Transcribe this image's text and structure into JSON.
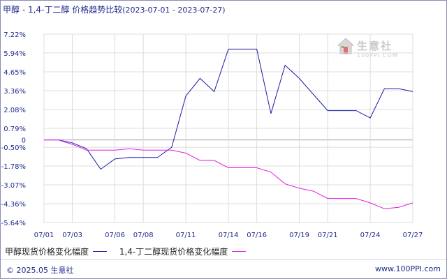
{
  "title": {
    "main": "甲醇 - 1,4-丁二醇 价格趋势比较",
    "range": "(2023-07-01 - 2023-07-27)"
  },
  "watermark": {
    "text": "生意社",
    "sub": "100PPI.COM"
  },
  "legend": [
    {
      "label": "甲醇现货价格变化幅度",
      "color": "#1a1aa6"
    },
    {
      "label": "1,4-丁二醇现货价格变化幅度",
      "color": "#e01ee0"
    }
  ],
  "footer": {
    "left": "© 2025.05 生意社",
    "right": "www.100PPI.com"
  },
  "chart_data": {
    "type": "line",
    "x_ticks": [
      "07/01",
      "07/03",
      "07/06",
      "07/08",
      "07/11",
      "07/14",
      "07/16",
      "07/19",
      "07/21",
      "07/24",
      "07/27"
    ],
    "y_ticks": [
      "7.22%",
      "5.94%",
      "4.65%",
      "3.36%",
      "2.08%",
      "0.79%",
      "0",
      "-0.50%",
      "-1.78%",
      "-3.07%",
      "-4.36%",
      "-5.64%"
    ],
    "y_tick_values": [
      7.22,
      5.94,
      4.65,
      3.36,
      2.08,
      0.79,
      0,
      -0.5,
      -1.78,
      -3.07,
      -4.36,
      -5.64
    ],
    "ylim": [
      -5.64,
      7.22
    ],
    "x_range": [
      "2023-07-01",
      "2023-07-27"
    ],
    "grid": true,
    "series": [
      {
        "name": "甲醇现货价格变化幅度",
        "color": "#1a1aa6",
        "points": [
          [
            "2023-07-01",
            0.0
          ],
          [
            "2023-07-02",
            0.0
          ],
          [
            "2023-07-03",
            -0.2
          ],
          [
            "2023-07-04",
            -0.6
          ],
          [
            "2023-07-05",
            -2.0
          ],
          [
            "2023-07-06",
            -1.3
          ],
          [
            "2023-07-07",
            -1.2
          ],
          [
            "2023-07-08",
            -1.2
          ],
          [
            "2023-07-09",
            -1.2
          ],
          [
            "2023-07-10",
            -0.5
          ],
          [
            "2023-07-11",
            3.0
          ],
          [
            "2023-07-12",
            4.2
          ],
          [
            "2023-07-13",
            3.3
          ],
          [
            "2023-07-14",
            6.2
          ],
          [
            "2023-07-15",
            6.2
          ],
          [
            "2023-07-16",
            6.2
          ],
          [
            "2023-07-17",
            1.8
          ],
          [
            "2023-07-18",
            5.1
          ],
          [
            "2023-07-19",
            4.2
          ],
          [
            "2023-07-20",
            3.1
          ],
          [
            "2023-07-21",
            2.0
          ],
          [
            "2023-07-22",
            2.0
          ],
          [
            "2023-07-23",
            2.0
          ],
          [
            "2023-07-24",
            1.5
          ],
          [
            "2023-07-25",
            3.5
          ],
          [
            "2023-07-26",
            3.5
          ],
          [
            "2023-07-27",
            3.3
          ]
        ]
      },
      {
        "name": "1,4-丁二醇现货价格变化幅度",
        "color": "#e01ee0",
        "points": [
          [
            "2023-07-01",
            0.0
          ],
          [
            "2023-07-02",
            0.0
          ],
          [
            "2023-07-03",
            -0.3
          ],
          [
            "2023-07-04",
            -0.7
          ],
          [
            "2023-07-05",
            -0.7
          ],
          [
            "2023-07-06",
            -0.7
          ],
          [
            "2023-07-07",
            -0.6
          ],
          [
            "2023-07-08",
            -0.7
          ],
          [
            "2023-07-09",
            -0.7
          ],
          [
            "2023-07-10",
            -0.7
          ],
          [
            "2023-07-11",
            -0.9
          ],
          [
            "2023-07-12",
            -1.4
          ],
          [
            "2023-07-13",
            -1.4
          ],
          [
            "2023-07-14",
            -1.9
          ],
          [
            "2023-07-15",
            -1.9
          ],
          [
            "2023-07-16",
            -1.9
          ],
          [
            "2023-07-17",
            -2.2
          ],
          [
            "2023-07-18",
            -3.0
          ],
          [
            "2023-07-19",
            -3.3
          ],
          [
            "2023-07-20",
            -3.5
          ],
          [
            "2023-07-21",
            -4.0
          ],
          [
            "2023-07-22",
            -4.0
          ],
          [
            "2023-07-23",
            -4.0
          ],
          [
            "2023-07-24",
            -4.3
          ],
          [
            "2023-07-25",
            -4.7
          ],
          [
            "2023-07-26",
            -4.6
          ],
          [
            "2023-07-27",
            -4.3
          ]
        ]
      }
    ]
  }
}
